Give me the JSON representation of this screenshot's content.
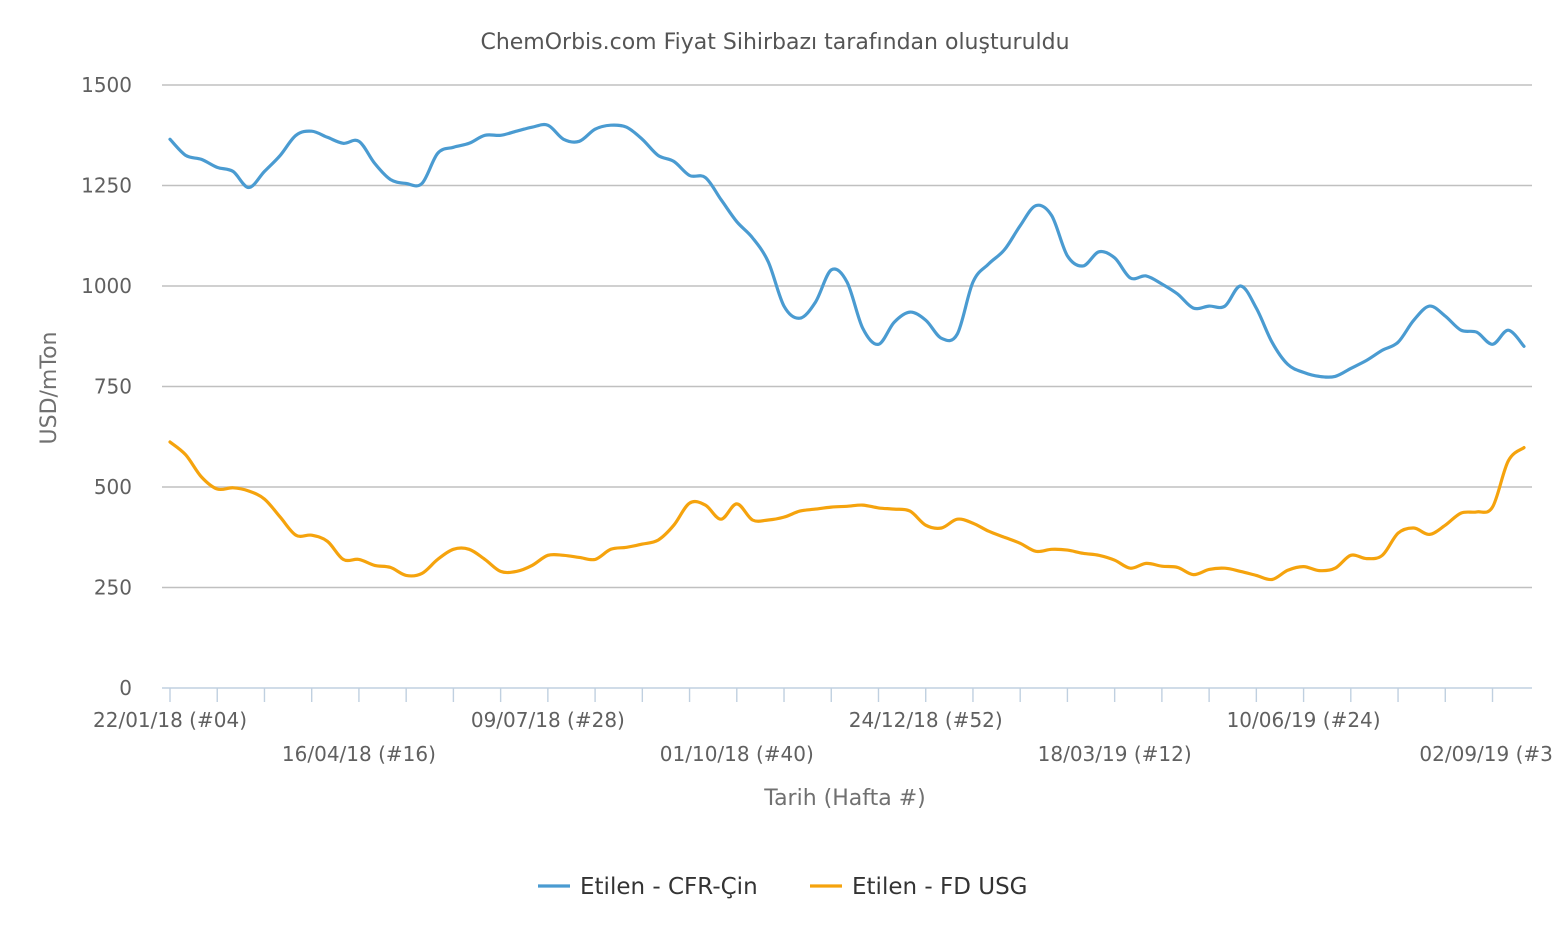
{
  "chart_data": {
    "type": "line",
    "title": "ChemOrbis.com Fiyat Sihirbazı tarafından oluşturuldu",
    "xlabel": "Tarih (Hafta #)",
    "ylabel": "USD/mTon",
    "ylim": [
      0,
      1500
    ],
    "yticks": [
      "0",
      "250",
      "500",
      "750",
      "1000",
      "1250",
      "1500"
    ],
    "x_labels": [
      {
        "label": "22/01/18 (#04)",
        "week": 0,
        "row": 1
      },
      {
        "label": "16/04/18 (#16)",
        "week": 12,
        "row": 2
      },
      {
        "label": "09/07/18 (#28)",
        "week": 24,
        "row": 1
      },
      {
        "label": "01/10/18 (#40)",
        "week": 36,
        "row": 2
      },
      {
        "label": "24/12/18 (#52)",
        "week": 48,
        "row": 1
      },
      {
        "label": "18/03/19 (#12)",
        "week": 60,
        "row": 2
      },
      {
        "label": "10/06/19 (#24)",
        "week": 72,
        "row": 1
      },
      {
        "label": "02/09/19 (#36",
        "week": 84,
        "row": 2
      }
    ],
    "grid": true,
    "legend_position": "bottom-center",
    "series": [
      {
        "name": "Etilen - CFR-Çin",
        "color": "#4a9bd1",
        "points": [
          [
            0,
            1365
          ],
          [
            1,
            1325
          ],
          [
            2,
            1315
          ],
          [
            3,
            1295
          ],
          [
            4,
            1285
          ],
          [
            5,
            1245
          ],
          [
            6,
            1285
          ],
          [
            7,
            1325
          ],
          [
            8,
            1375
          ],
          [
            9,
            1385
          ],
          [
            10,
            1370
          ],
          [
            11,
            1355
          ],
          [
            12,
            1360
          ],
          [
            13,
            1305
          ],
          [
            14,
            1265
          ],
          [
            15,
            1255
          ],
          [
            16,
            1255
          ],
          [
            17,
            1330
          ],
          [
            18,
            1345
          ],
          [
            19,
            1355
          ],
          [
            20,
            1375
          ],
          [
            21,
            1375
          ],
          [
            22,
            1385
          ],
          [
            23,
            1395
          ],
          [
            24,
            1400
          ],
          [
            25,
            1365
          ],
          [
            26,
            1360
          ],
          [
            27,
            1390
          ],
          [
            28,
            1400
          ],
          [
            29,
            1395
          ],
          [
            30,
            1365
          ],
          [
            31,
            1325
          ],
          [
            32,
            1310
          ],
          [
            33,
            1275
          ],
          [
            34,
            1270
          ],
          [
            35,
            1215
          ],
          [
            36,
            1160
          ],
          [
            37,
            1120
          ],
          [
            38,
            1060
          ],
          [
            39,
            950
          ],
          [
            40,
            920
          ],
          [
            41,
            960
          ],
          [
            42,
            1040
          ],
          [
            43,
            1010
          ],
          [
            44,
            895
          ],
          [
            45,
            855
          ],
          [
            46,
            910
          ],
          [
            47,
            935
          ],
          [
            48,
            915
          ],
          [
            49,
            870
          ],
          [
            50,
            880
          ],
          [
            51,
            1010
          ],
          [
            52,
            1055
          ],
          [
            53,
            1090
          ],
          [
            54,
            1150
          ],
          [
            55,
            1200
          ],
          [
            56,
            1175
          ],
          [
            57,
            1075
          ],
          [
            58,
            1050
          ],
          [
            59,
            1085
          ],
          [
            60,
            1070
          ],
          [
            61,
            1020
          ],
          [
            62,
            1025
          ],
          [
            63,
            1005
          ],
          [
            64,
            980
          ],
          [
            65,
            945
          ],
          [
            66,
            950
          ],
          [
            67,
            950
          ],
          [
            68,
            1000
          ],
          [
            69,
            945
          ],
          [
            70,
            860
          ],
          [
            71,
            805
          ],
          [
            72,
            785
          ],
          [
            73,
            775
          ],
          [
            74,
            775
          ],
          [
            75,
            795
          ],
          [
            76,
            815
          ],
          [
            77,
            840
          ],
          [
            78,
            860
          ],
          [
            79,
            915
          ],
          [
            80,
            950
          ],
          [
            81,
            925
          ],
          [
            82,
            890
          ],
          [
            83,
            885
          ],
          [
            84,
            855
          ],
          [
            85,
            890
          ],
          [
            86,
            850
          ]
        ]
      },
      {
        "name": "Etilen - FD USG",
        "color": "#f5a30d",
        "points": [
          [
            0,
            612
          ],
          [
            1,
            580
          ],
          [
            2,
            525
          ],
          [
            3,
            495
          ],
          [
            4,
            498
          ],
          [
            5,
            490
          ],
          [
            6,
            470
          ],
          [
            7,
            425
          ],
          [
            8,
            380
          ],
          [
            9,
            380
          ],
          [
            10,
            365
          ],
          [
            11,
            320
          ],
          [
            12,
            320
          ],
          [
            13,
            305
          ],
          [
            14,
            300
          ],
          [
            15,
            280
          ],
          [
            16,
            285
          ],
          [
            17,
            320
          ],
          [
            18,
            345
          ],
          [
            19,
            345
          ],
          [
            20,
            320
          ],
          [
            21,
            290
          ],
          [
            22,
            290
          ],
          [
            23,
            305
          ],
          [
            24,
            330
          ],
          [
            25,
            330
          ],
          [
            26,
            325
          ],
          [
            27,
            320
          ],
          [
            28,
            345
          ],
          [
            29,
            350
          ],
          [
            30,
            358
          ],
          [
            31,
            368
          ],
          [
            32,
            405
          ],
          [
            33,
            460
          ],
          [
            34,
            455
          ],
          [
            35,
            420
          ],
          [
            36,
            458
          ],
          [
            37,
            418
          ],
          [
            38,
            418
          ],
          [
            39,
            425
          ],
          [
            40,
            440
          ],
          [
            41,
            445
          ],
          [
            42,
            450
          ],
          [
            43,
            452
          ],
          [
            44,
            455
          ],
          [
            45,
            448
          ],
          [
            46,
            445
          ],
          [
            47,
            440
          ],
          [
            48,
            405
          ],
          [
            49,
            398
          ],
          [
            50,
            420
          ],
          [
            51,
            410
          ],
          [
            52,
            390
          ],
          [
            53,
            375
          ],
          [
            54,
            360
          ],
          [
            55,
            340
          ],
          [
            56,
            345
          ],
          [
            57,
            343
          ],
          [
            58,
            335
          ],
          [
            59,
            330
          ],
          [
            60,
            318
          ],
          [
            61,
            298
          ],
          [
            62,
            310
          ],
          [
            63,
            303
          ],
          [
            64,
            300
          ],
          [
            65,
            282
          ],
          [
            66,
            295
          ],
          [
            67,
            298
          ],
          [
            68,
            290
          ],
          [
            69,
            280
          ],
          [
            70,
            270
          ],
          [
            71,
            293
          ],
          [
            72,
            302
          ],
          [
            73,
            292
          ],
          [
            74,
            298
          ],
          [
            75,
            330
          ],
          [
            76,
            322
          ],
          [
            77,
            330
          ],
          [
            78,
            385
          ],
          [
            79,
            398
          ],
          [
            80,
            382
          ],
          [
            81,
            405
          ],
          [
            82,
            435
          ],
          [
            83,
            438
          ],
          [
            84,
            450
          ],
          [
            85,
            565
          ],
          [
            86,
            598
          ]
        ]
      }
    ]
  }
}
